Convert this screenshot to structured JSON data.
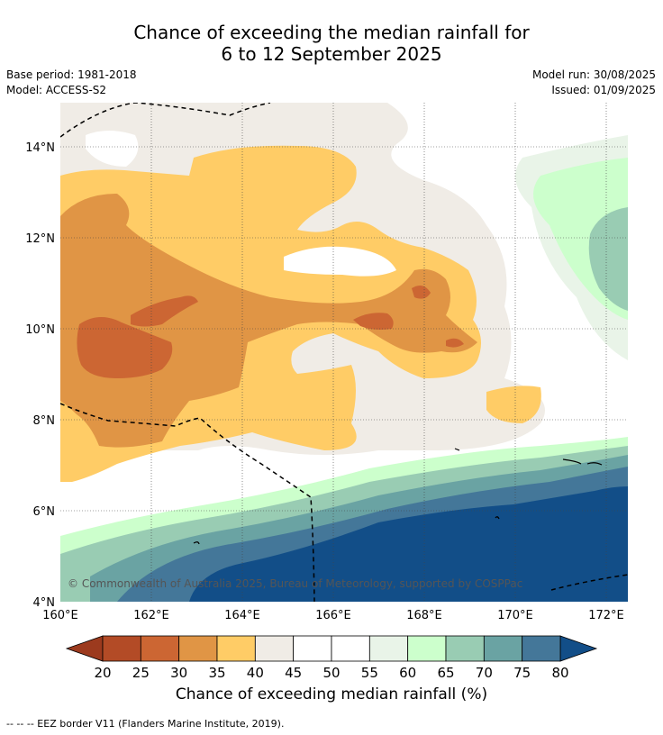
{
  "title_line1": "Chance of exceeding the median rainfall for",
  "title_line2": "6 to 12 September 2025",
  "base_period": "Base period: 1981-2018",
  "model": "Model: ACCESS-S2",
  "model_run": "Model run: 30/08/2025",
  "issued": "Issued: 01/09/2025",
  "copyright": "© Commonwealth of Australia 2025, Bureau of Meteorology, supported by COSPPac",
  "lon_ticks": [
    "160°E",
    "162°E",
    "164°E",
    "166°E",
    "168°E",
    "170°E",
    "172°E"
  ],
  "lat_ticks": [
    "14°N",
    "12°N",
    "10°N",
    "8°N",
    "6°N",
    "4°N"
  ],
  "colorbar": {
    "title": "Chance of exceeding median rainfall (%)",
    "labels": [
      "20",
      "25",
      "30",
      "35",
      "40",
      "45",
      "50",
      "55",
      "60",
      "65",
      "70",
      "75",
      "80"
    ],
    "colors": [
      "#b34b26",
      "#cc6633",
      "#e09545",
      "#ffcc66",
      "#f0ece6",
      "#ffffff",
      "#ffffff",
      "#e9f4e8",
      "#ccffcc",
      "#99ccb3",
      "#6aa3a3",
      "#447799"
    ],
    "under_color": "#9c3a1e",
    "over_color": "#124e88"
  },
  "footer": "--  --  -- EEZ border V11 (Flanders Marine Institute, 2019)."
}
